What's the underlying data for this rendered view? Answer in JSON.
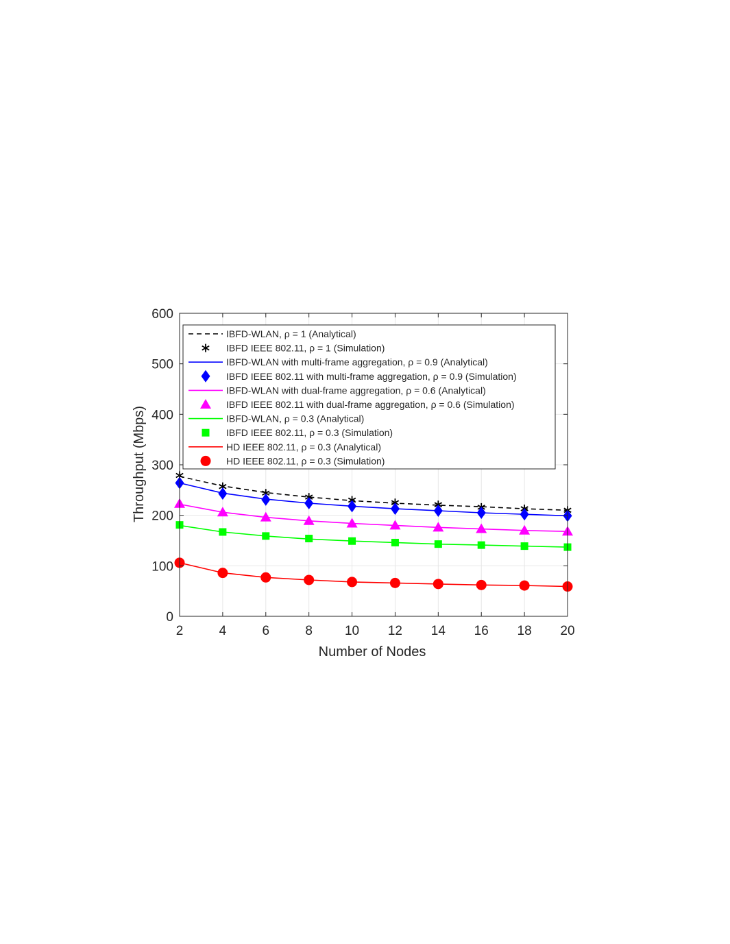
{
  "chart_data": {
    "type": "line",
    "title": "",
    "xlabel": "Number of Nodes",
    "ylabel": "Throughput (Mbps)",
    "xlim": [
      2,
      20
    ],
    "ylim": [
      0,
      600
    ],
    "xticks": [
      2,
      4,
      6,
      8,
      10,
      12,
      14,
      16,
      18,
      20
    ],
    "yticks": [
      0,
      100,
      200,
      300,
      400,
      500,
      600
    ],
    "grid": true,
    "legend_position": "top-right",
    "x": [
      2,
      4,
      6,
      8,
      10,
      12,
      14,
      16,
      18,
      20
    ],
    "series": [
      {
        "name": "IBFD-WLAN, ρ = 1 (Analytical)",
        "color": "#000000",
        "line_style": "dashed",
        "marker": "none",
        "values": [
          277,
          258,
          245,
          236,
          229,
          224,
          220,
          217,
          213,
          210
        ]
      },
      {
        "name": "IBFD IEEE 802.11, ρ = 1 (Simulation)",
        "color": "#000000",
        "line_style": "none",
        "marker": "asterisk",
        "values": [
          279,
          257,
          244,
          236,
          230,
          225,
          221,
          216,
          213,
          210
        ]
      },
      {
        "name": "IBFD-WLAN with multi-frame aggregation, ρ = 0.9 (Analytical)",
        "color": "#0000ff",
        "line_style": "solid",
        "marker": "none",
        "values": [
          264,
          244,
          232,
          224,
          218,
          213,
          209,
          205,
          202,
          199
        ]
      },
      {
        "name": "IBFD IEEE 802.11 with multi-frame aggregation, ρ = 0.9 (Simulation)",
        "color": "#0000ff",
        "line_style": "none",
        "marker": "diamond",
        "values": [
          264,
          243,
          231,
          224,
          218,
          213,
          209,
          205,
          202,
          199
        ]
      },
      {
        "name": "IBFD-WLAN with dual-frame aggregation, ρ = 0.6 (Analytical)",
        "color": "#ff00ff",
        "line_style": "solid",
        "marker": "none",
        "values": [
          222,
          206,
          196,
          189,
          184,
          180,
          176,
          173,
          170,
          168
        ]
      },
      {
        "name": "IBFD IEEE 802.11 with dual-frame aggregation, ρ = 0.6 (Simulation)",
        "color": "#ff00ff",
        "line_style": "none",
        "marker": "triangle",
        "values": [
          223,
          206,
          196,
          189,
          184,
          180,
          176,
          173,
          170,
          168
        ]
      },
      {
        "name": "IBFD-WLAN, ρ = 0.3 (Analytical)",
        "color": "#00ff00",
        "line_style": "solid",
        "marker": "none",
        "values": [
          180,
          167,
          159,
          153,
          149,
          146,
          143,
          141,
          139,
          137
        ]
      },
      {
        "name": "IBFD IEEE 802.11, ρ = 0.3 (Simulation)",
        "color": "#00ff00",
        "line_style": "none",
        "marker": "square",
        "values": [
          181,
          167,
          159,
          154,
          149,
          146,
          143,
          141,
          139,
          137
        ]
      },
      {
        "name": "HD IEEE 802.11, ρ = 0.3 (Analytical)",
        "color": "#ff0000",
        "line_style": "solid",
        "marker": "none",
        "values": [
          106,
          86,
          77,
          72,
          68,
          66,
          64,
          62,
          61,
          59
        ]
      },
      {
        "name": "HD IEEE 802.11, ρ = 0.3 (Simulation)",
        "color": "#ff0000",
        "line_style": "none",
        "marker": "circle",
        "values": [
          106,
          86,
          77,
          72,
          68,
          66,
          64,
          62,
          61,
          59
        ]
      }
    ]
  }
}
